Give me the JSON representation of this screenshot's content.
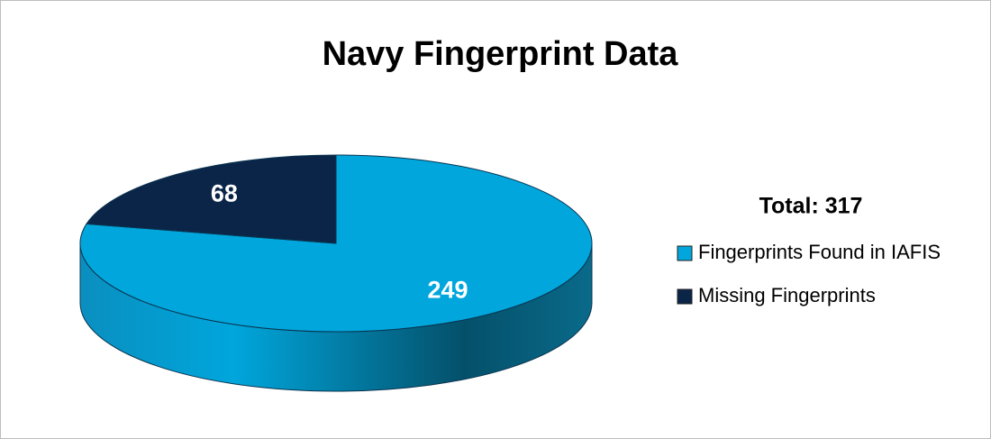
{
  "chart_data": {
    "type": "pie",
    "title": "Navy Fingerprint Data",
    "categories": [
      "Fingerprints Found in IAFIS",
      "Missing Fingerprints"
    ],
    "values": [
      249,
      68
    ],
    "colors": [
      "#00a6dc",
      "#0b2548"
    ],
    "annotation": "Total: 317"
  }
}
